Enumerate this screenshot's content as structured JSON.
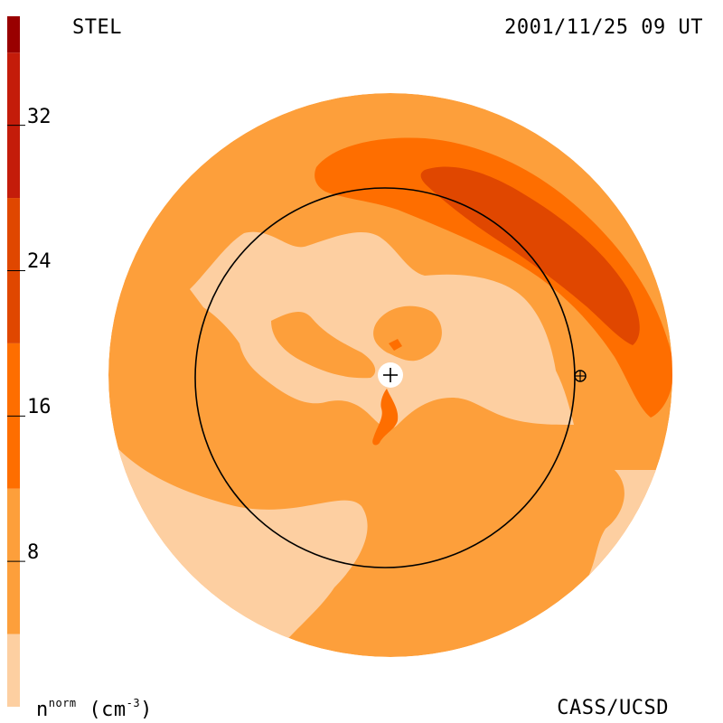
{
  "header": {
    "left_label": "STEL",
    "right_label": "2001/11/25 09 UT"
  },
  "footer": {
    "credit": "CASS/UCSD",
    "unit_prefix": "n",
    "unit_sup": "norm",
    "unit_suffix": " (cm",
    "unit_exp": "-3",
    "unit_close": ")"
  },
  "colors": {
    "level_1": "#fdcfa1",
    "level_2": "#fd9f3b",
    "level_3": "#fe6e00",
    "level_4": "#e04700",
    "level_5": "#c41c0a",
    "level_6": "#990000",
    "level_7": "#6a0606",
    "level_8": "#220000",
    "outline": "#000000",
    "earth": "#ffffff"
  },
  "chart_data": {
    "type": "heatmap",
    "title": "STEL",
    "timestamp": "2001/11/25 09 UT",
    "colorbar": {
      "label": "n^norm (cm^-3)",
      "range": [
        0,
        38
      ],
      "ticks": [
        8,
        16,
        24,
        32
      ],
      "levels": [
        {
          "from": 0,
          "to": 4,
          "color": "#fdcfa1"
        },
        {
          "from": 4,
          "to": 12,
          "color": "#fd9f3b"
        },
        {
          "from": 12,
          "to": 20,
          "color": "#fe6e00"
        },
        {
          "from": 20,
          "to": 28,
          "color": "#e04700"
        },
        {
          "from": 28,
          "to": 36,
          "color": "#c41c0a"
        },
        {
          "from": 36,
          "to": 44,
          "color": "#990000"
        },
        {
          "from": 44,
          "to": 52,
          "color": "#6a0606"
        },
        {
          "from": 52,
          "to": 60,
          "color": "#220000"
        }
      ]
    },
    "regions": [
      {
        "name": "background-disk",
        "level": 2
      },
      {
        "name": "lower-left-low-density",
        "level": 1
      },
      {
        "name": "central-low-density-band",
        "level": 1
      },
      {
        "name": "lower-right-low-density",
        "level": 1
      },
      {
        "name": "upper-right-arc-enhanced",
        "level": 3
      },
      {
        "name": "upper-right-arc-core",
        "level": 4
      },
      {
        "name": "center-streamer",
        "level": 3
      }
    ],
    "markers": [
      {
        "name": "earth",
        "symbol": "+"
      },
      {
        "name": "spacecraft",
        "symbol": "⊕"
      }
    ]
  }
}
